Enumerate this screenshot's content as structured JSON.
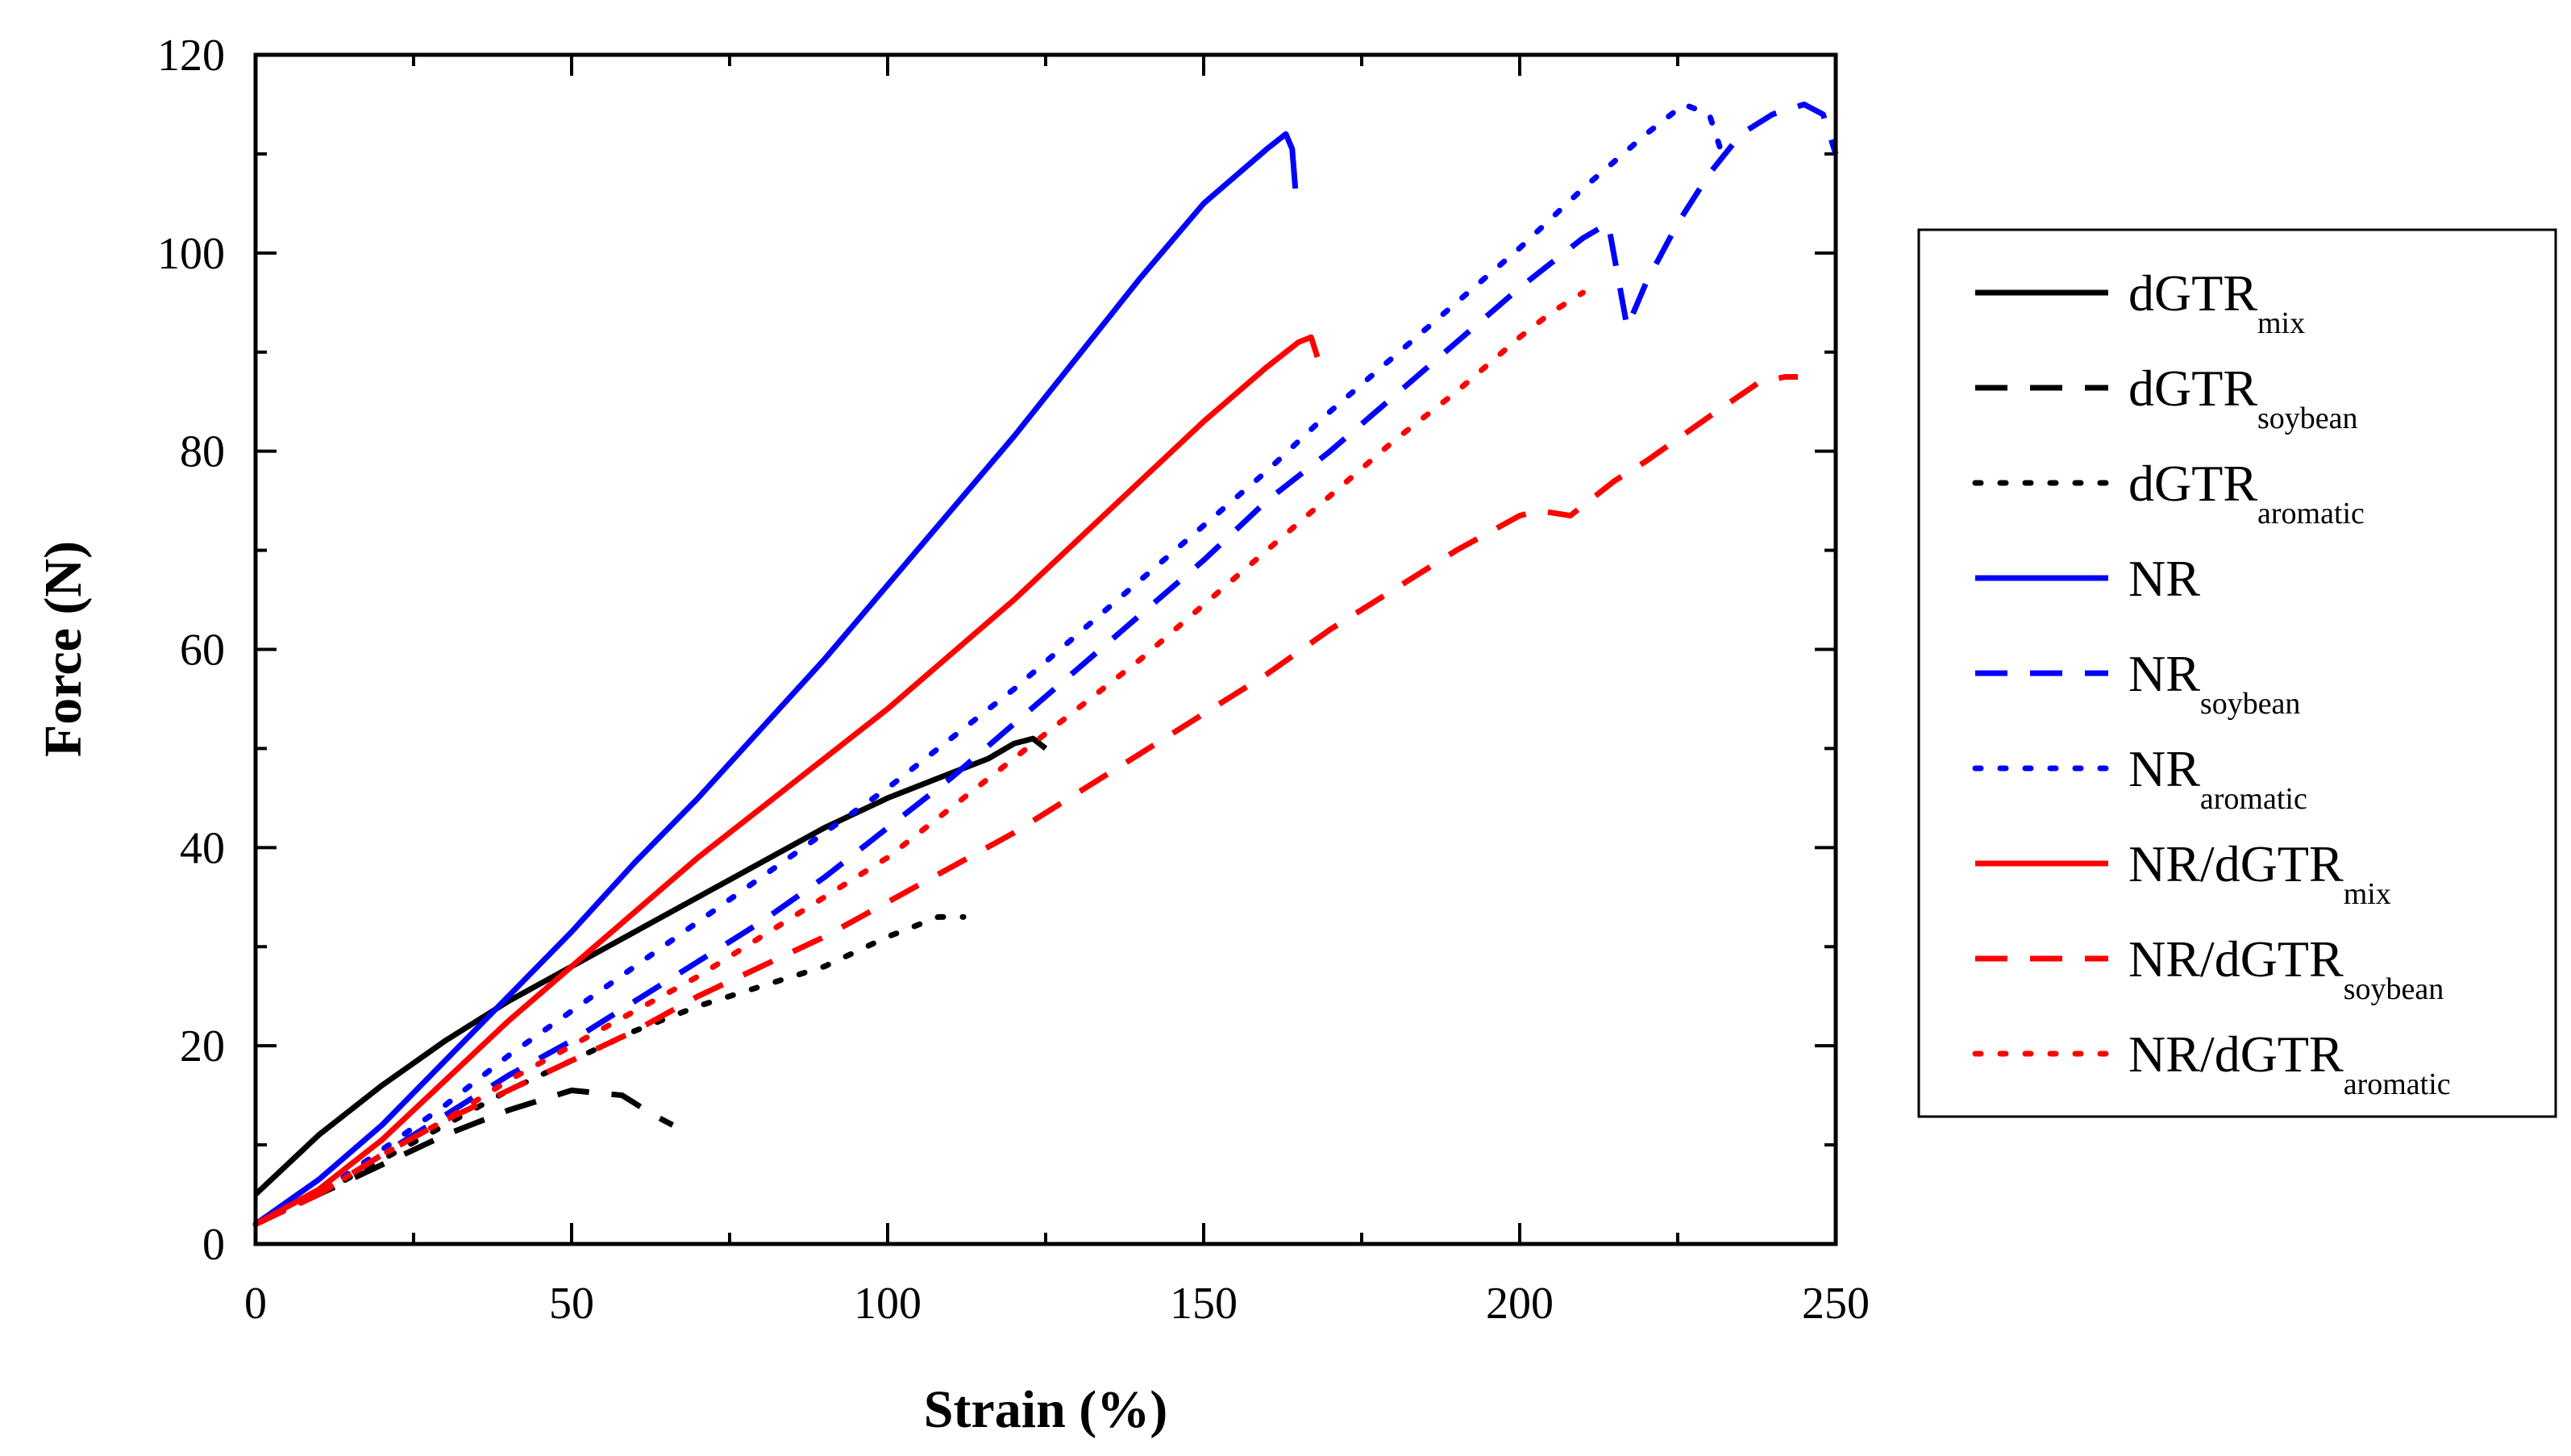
{
  "chart_data": {
    "type": "line",
    "title": "",
    "xlabel": "Strain (%)",
    "ylabel": "Force (N)",
    "xlim": [
      0,
      250
    ],
    "ylim": [
      0,
      120
    ],
    "xticks": [
      0,
      50,
      100,
      150,
      200,
      250
    ],
    "yticks": [
      0,
      20,
      40,
      60,
      80,
      100,
      120
    ],
    "grid": false,
    "legend_position": "right",
    "series": [
      {
        "name": "dGTRmix",
        "label_main": "dGTR",
        "label_sub": "mix",
        "color": "#000000",
        "style": "solid",
        "x": [
          0,
          5,
          10,
          20,
          30,
          40,
          50,
          60,
          70,
          80,
          90,
          100,
          108,
          112,
          116,
          120,
          123,
          125
        ],
        "y": [
          5,
          8,
          11,
          16,
          20.5,
          24.5,
          28,
          31.5,
          35,
          38.5,
          42,
          45,
          47,
          48,
          49,
          50.5,
          51,
          50
        ]
      },
      {
        "name": "dGTRsoybean",
        "label_main": "dGTR",
        "label_sub": "soybean",
        "color": "#000000",
        "style": "dashed",
        "x": [
          0,
          10,
          20,
          30,
          40,
          50,
          58,
          63,
          66
        ],
        "y": [
          2,
          5,
          8,
          11,
          13.5,
          15.5,
          15,
          13,
          12
        ]
      },
      {
        "name": "dGTRaromatic",
        "label_main": "dGTR",
        "label_sub": "aromatic",
        "color": "#000000",
        "style": "dotted",
        "x": [
          0,
          10,
          20,
          30,
          40,
          50,
          60,
          70,
          80,
          90,
          100,
          108,
          112
        ],
        "y": [
          2,
          5,
          8.5,
          12,
          15.5,
          18.5,
          21.5,
          24,
          26,
          28,
          31,
          33,
          33
        ]
      },
      {
        "name": "NR",
        "label_main": "NR",
        "label_sub": "",
        "color": "#0000ff",
        "style": "solid",
        "x": [
          0,
          10,
          20,
          30,
          40,
          50,
          60,
          70,
          80,
          90,
          100,
          110,
          120,
          130,
          140,
          150,
          160,
          163,
          164,
          164.5
        ],
        "y": [
          2,
          6.5,
          12,
          18.5,
          25,
          31.5,
          38.5,
          45,
          52,
          59,
          66.5,
          74,
          81.5,
          89.5,
          97.5,
          105,
          110.5,
          112,
          110.5,
          106.5
        ]
      },
      {
        "name": "NRsoybean",
        "label_main": "NR",
        "label_sub": "soybean",
        "color": "#0000ff",
        "style": "dashed",
        "x": [
          0,
          10,
          20,
          30,
          40,
          50,
          60,
          70,
          80,
          90,
          100,
          110,
          120,
          130,
          140,
          150,
          160,
          170,
          180,
          190,
          200,
          210,
          214,
          217,
          220,
          225,
          230,
          235,
          240,
          245,
          248,
          250
        ],
        "y": [
          2,
          5,
          9,
          13,
          17,
          20.5,
          24.5,
          28.5,
          32.5,
          37,
          42,
          47,
          52.5,
          58,
          63.5,
          69,
          75,
          80,
          85.5,
          91,
          96.5,
          101.5,
          103,
          92.5,
          97,
          103,
          108,
          112,
          114,
          115,
          114,
          110
        ]
      },
      {
        "name": "NRaromatic",
        "label_main": "NR",
        "label_sub": "aromatic",
        "color": "#0000ff",
        "style": "dotted",
        "x": [
          0,
          10,
          20,
          30,
          40,
          50,
          60,
          70,
          80,
          90,
          100,
          110,
          120,
          130,
          140,
          150,
          160,
          170,
          180,
          190,
          200,
          210,
          220,
          226,
          230,
          232
        ],
        "y": [
          2,
          5,
          9.5,
          14,
          19,
          23.5,
          28,
          32.5,
          37,
          41.5,
          46,
          51,
          56,
          61.5,
          67,
          72.5,
          78,
          84,
          89.5,
          95,
          100.5,
          106.5,
          112,
          115,
          114,
          110
        ]
      },
      {
        "name": "NR/dGTRmix",
        "label_main": "NR/dGTR",
        "label_sub": "mix",
        "color": "#ff0000",
        "style": "solid",
        "x": [
          0,
          10,
          20,
          30,
          40,
          50,
          60,
          70,
          80,
          90,
          100,
          110,
          120,
          130,
          140,
          150,
          160,
          165,
          167,
          168
        ],
        "y": [
          2,
          5.5,
          10.5,
          16.5,
          22.5,
          28,
          33.5,
          39,
          44,
          49,
          54,
          59.5,
          65,
          71,
          77,
          83,
          88.5,
          91,
          91.5,
          89.5
        ]
      },
      {
        "name": "NR/dGTRsoybean",
        "label_main": "NR/dGTR",
        "label_sub": "soybean",
        "color": "#ff0000",
        "style": "dashed",
        "x": [
          0,
          10,
          20,
          30,
          40,
          50,
          60,
          70,
          80,
          90,
          100,
          110,
          120,
          130,
          140,
          150,
          160,
          170,
          180,
          190,
          200,
          203,
          208,
          215,
          220,
          230,
          238,
          242,
          244
        ],
        "y": [
          2,
          5,
          9,
          12.5,
          15.5,
          18.5,
          21.5,
          25,
          28,
          31,
          34.5,
          38,
          41.5,
          45.5,
          49.5,
          53.5,
          57.5,
          62,
          66,
          70,
          73.5,
          74,
          73.5,
          77,
          79,
          83.5,
          87,
          87.5,
          87.5
        ]
      },
      {
        "name": "NR/dGTRaromatic",
        "label_main": "NR/dGTR",
        "label_sub": "aromatic",
        "color": "#ff0000",
        "style": "dotted",
        "x": [
          0,
          10,
          20,
          30,
          40,
          50,
          60,
          70,
          80,
          90,
          100,
          110,
          120,
          130,
          140,
          150,
          160,
          170,
          180,
          190,
          200,
          205,
          210
        ],
        "y": [
          2,
          5,
          9,
          12.5,
          16.5,
          20,
          23.5,
          27,
          31,
          35,
          39,
          44,
          49,
          54,
          59,
          64.5,
          70,
          75.5,
          81,
          86,
          91.5,
          94,
          96
        ]
      }
    ]
  }
}
